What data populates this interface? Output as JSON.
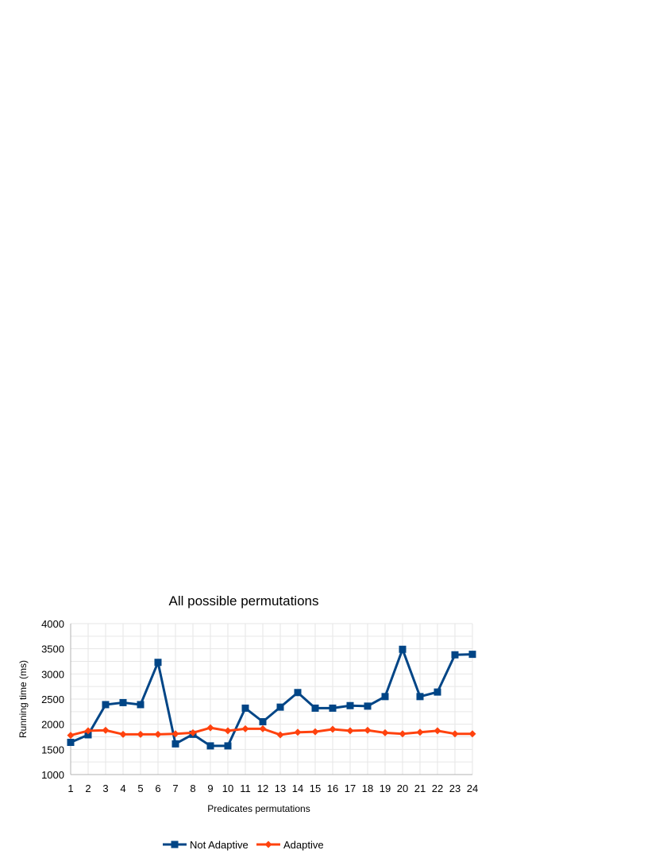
{
  "chart_data": {
    "type": "line",
    "title": "All possible permutations",
    "xlabel": "Predicates permutations",
    "ylabel": "Running time (ms)",
    "x": [
      1,
      2,
      3,
      4,
      5,
      6,
      7,
      8,
      9,
      10,
      11,
      12,
      13,
      14,
      15,
      16,
      17,
      18,
      19,
      20,
      21,
      22,
      23,
      24
    ],
    "ylim": [
      1000,
      4000
    ],
    "yticks": [
      1000,
      1500,
      2000,
      2500,
      3000,
      3500,
      4000
    ],
    "minor_grid_step": 250,
    "grid": true,
    "legend_position": "bottom",
    "series": [
      {
        "name": "Not Adaptive",
        "color": "#004586",
        "marker": "square",
        "values": [
          1640,
          1790,
          2390,
          2430,
          2390,
          3230,
          1610,
          1800,
          1570,
          1570,
          2320,
          2050,
          2340,
          2630,
          2320,
          2320,
          2370,
          2360,
          2550,
          3490,
          2550,
          2640,
          3380,
          3390
        ]
      },
      {
        "name": "Adaptive",
        "color": "#ff420e",
        "marker": "diamond",
        "values": [
          1780,
          1870,
          1880,
          1800,
          1800,
          1800,
          1810,
          1830,
          1930,
          1870,
          1910,
          1910,
          1790,
          1840,
          1850,
          1900,
          1870,
          1880,
          1830,
          1810,
          1840,
          1870,
          1810,
          1810
        ]
      }
    ]
  }
}
